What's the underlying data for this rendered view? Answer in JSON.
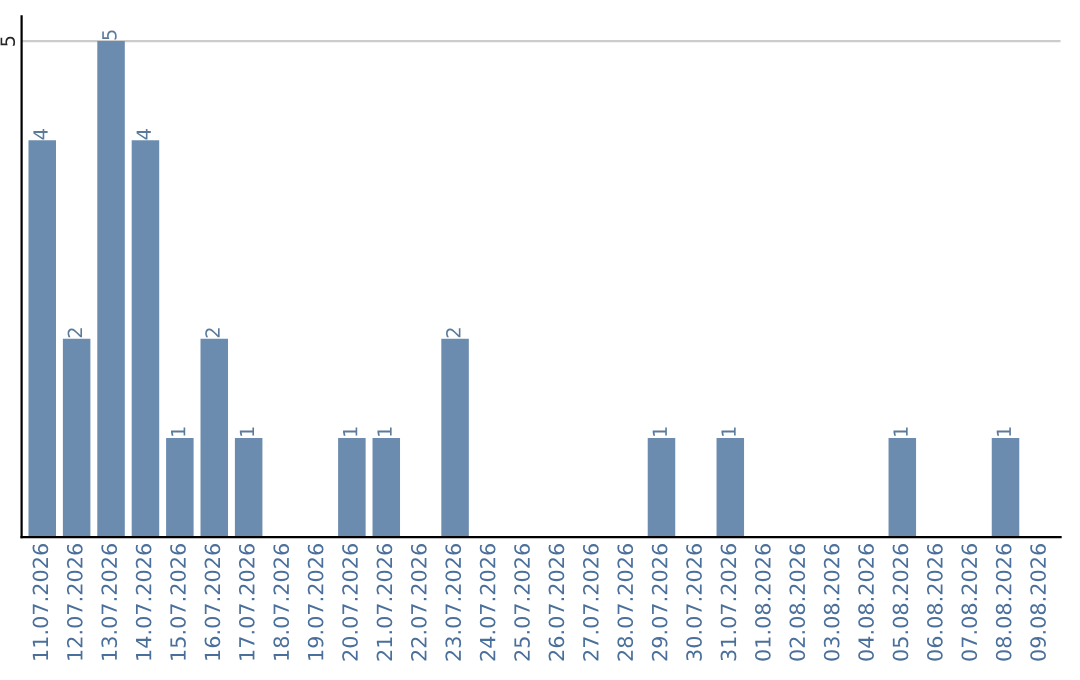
{
  "chart_data": {
    "type": "bar",
    "categories": [
      "11.07.2026",
      "12.07.2026",
      "13.07.2026",
      "14.07.2026",
      "15.07.2026",
      "16.07.2026",
      "17.07.2026",
      "18.07.2026",
      "19.07.2026",
      "20.07.2026",
      "21.07.2026",
      "22.07.2026",
      "23.07.2026",
      "24.07.2026",
      "25.07.2026",
      "26.07.2026",
      "27.07.2026",
      "28.07.2026",
      "29.07.2026",
      "30.07.2026",
      "31.07.2026",
      "01.08.2026",
      "02.08.2026",
      "03.08.2026",
      "04.08.2026",
      "05.08.2026",
      "06.08.2026",
      "07.08.2026",
      "08.08.2026",
      "09.08.2026"
    ],
    "values": [
      4,
      2,
      5,
      4,
      1,
      2,
      1,
      0,
      0,
      1,
      1,
      0,
      2,
      0,
      0,
      0,
      0,
      0,
      1,
      0,
      1,
      0,
      0,
      0,
      0,
      1,
      0,
      0,
      1,
      0
    ],
    "value_labels": [
      "4",
      "2",
      "5",
      "4",
      "1",
      "2",
      "1",
      null,
      null,
      "1",
      "1",
      null,
      "2",
      null,
      null,
      null,
      null,
      null,
      "1",
      null,
      "1",
      null,
      null,
      null,
      null,
      "1",
      null,
      null,
      "1",
      null
    ],
    "color": "#6b8cae",
    "ylim": [
      0,
      5.25
    ],
    "yticks": [
      5
    ],
    "grid": "y"
  }
}
